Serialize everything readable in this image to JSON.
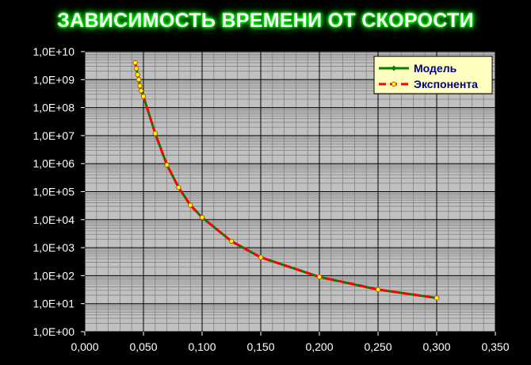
{
  "chart_data": {
    "type": "line",
    "title": "ЗАВИСИМОСТЬ ВРЕМЕНИ ОТ СКОРОСТИ",
    "xlabel": "",
    "ylabel": "",
    "xlim": [
      0,
      0.35
    ],
    "ylim": [
      1,
      10000000000
    ],
    "y_scale": "log",
    "grid": true,
    "legend_position": "top-right",
    "x_ticks": [
      "0,000",
      "0,050",
      "0,100",
      "0,150",
      "0,200",
      "0,250",
      "0,300",
      "0,350"
    ],
    "y_ticks": [
      "1,0E+00",
      "1,0E+01",
      "1,0E+02",
      "1,0E+03",
      "1,0E+04",
      "1,0E+05",
      "1,0E+06",
      "1,0E+07",
      "1,0E+08",
      "1,0E+09",
      "1,0E+10"
    ],
    "series": [
      {
        "name": "Модель",
        "color": "#008000",
        "marker": "diamond",
        "x": [
          0.043,
          0.044,
          0.045,
          0.046,
          0.047,
          0.048,
          0.05,
          0.06,
          0.07,
          0.08,
          0.09,
          0.1,
          0.125,
          0.15,
          0.2,
          0.25,
          0.3
        ],
        "y": [
          4000000000,
          2500000000,
          1500000000,
          1000000000,
          600000000,
          400000000,
          250000000,
          12000000,
          900000,
          140000,
          33000,
          12000,
          1700,
          450,
          90,
          32,
          16
        ]
      },
      {
        "name": "Экспонента",
        "color": "#ff0000",
        "marker": "circle",
        "x": [
          0.043,
          0.044,
          0.045,
          0.046,
          0.047,
          0.048,
          0.05,
          0.06,
          0.07,
          0.08,
          0.09,
          0.1,
          0.125,
          0.15,
          0.2,
          0.25,
          0.3
        ],
        "y": [
          4000000000,
          2500000000,
          1500000000,
          1000000000,
          600000000,
          400000000,
          250000000,
          12000000,
          900000,
          140000,
          33000,
          12000,
          1700,
          450,
          90,
          32,
          16
        ]
      }
    ]
  },
  "colors": {
    "plot_background": "#c0c0c0",
    "major_grid": "#000000",
    "minor_grid": "#808080",
    "title_glow": "#00ff00",
    "legend_background": "#ffffc0"
  }
}
